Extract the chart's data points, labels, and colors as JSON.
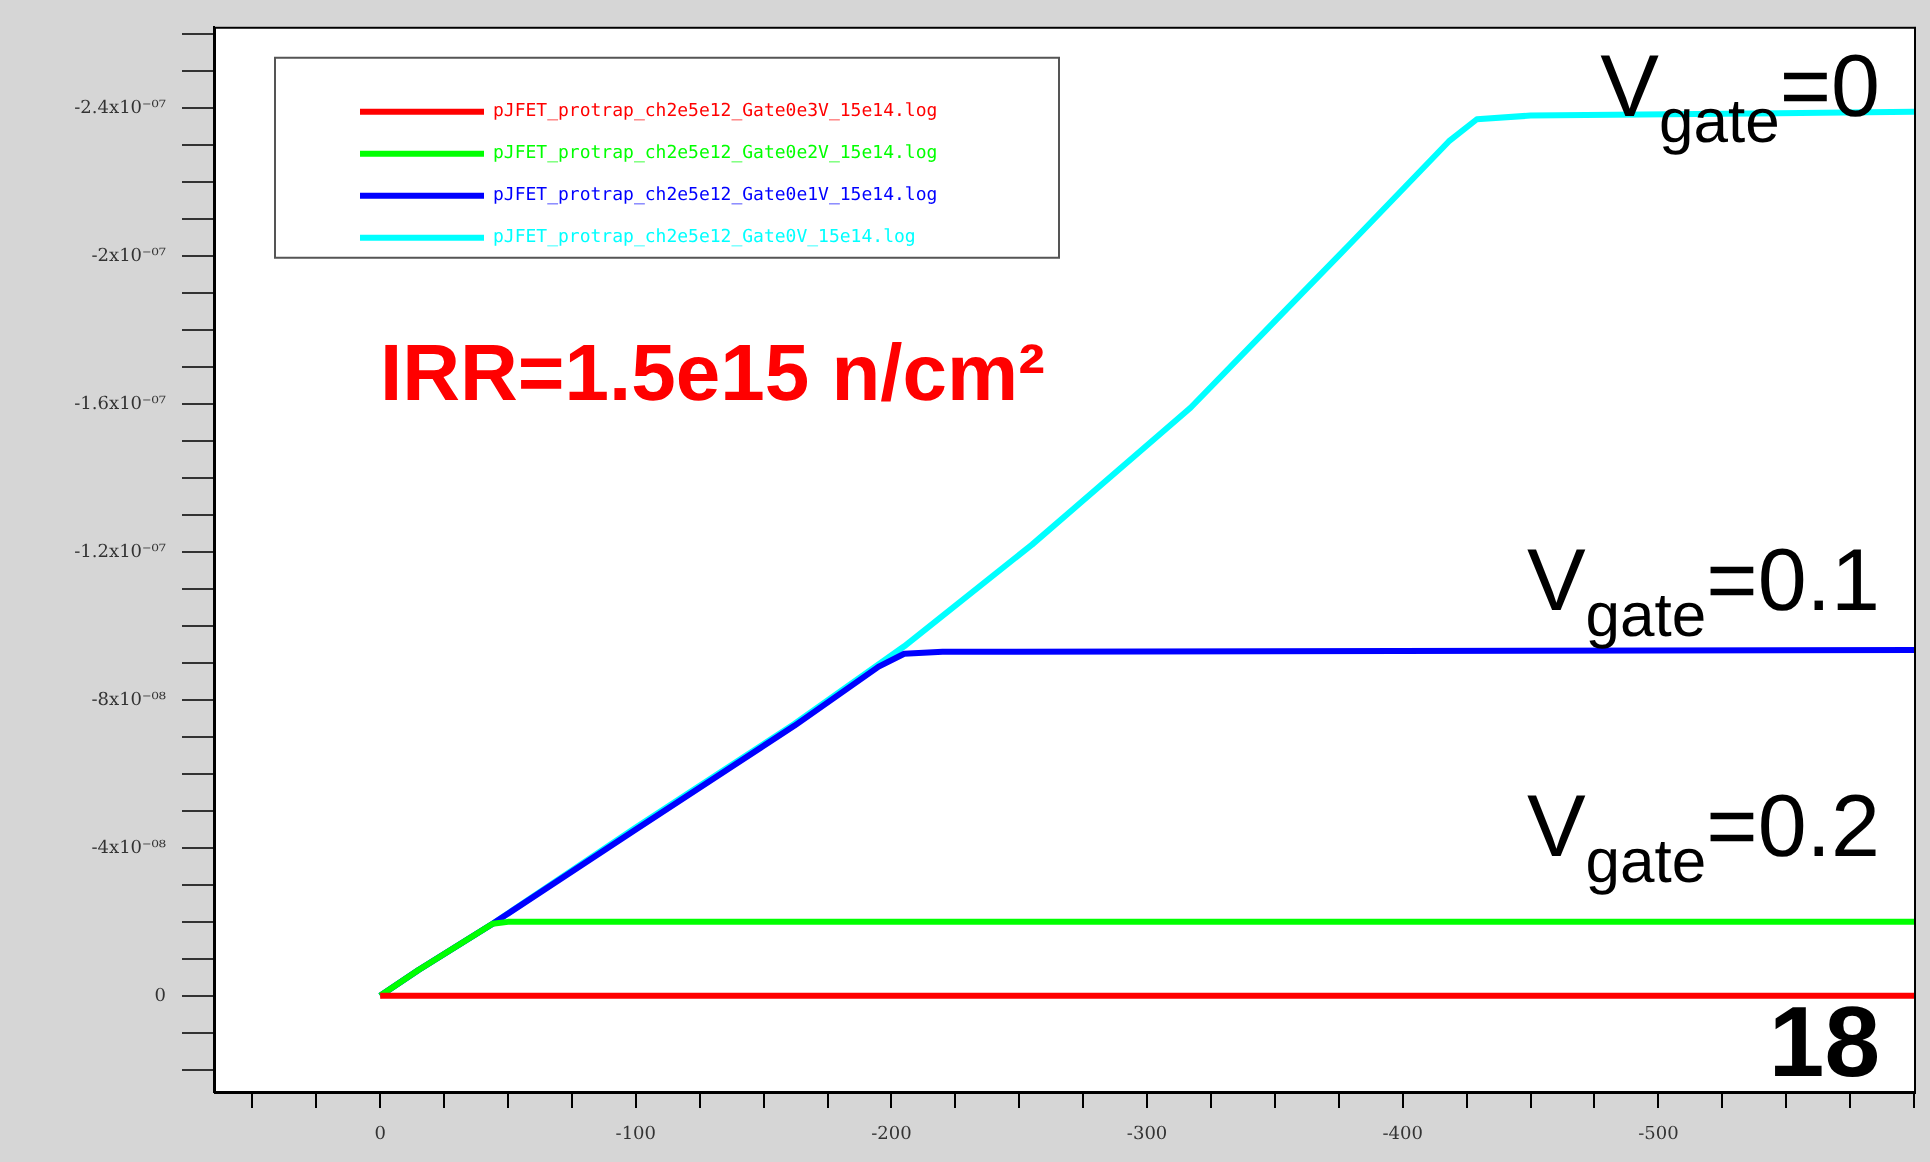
{
  "chart_data": {
    "type": "line",
    "legend": "top left",
    "grid": false,
    "marker": "none",
    "line_style": "solid",
    "xlim": [
      65,
      -600
    ],
    "ylim": [
      2.6e-08,
      -2.62e-07
    ],
    "xticks": [
      {
        "value": 50,
        "label": null
      },
      {
        "value": 25,
        "label": null
      },
      0,
      {
        "value": -25,
        "label": null
      },
      {
        "value": -50,
        "label": null
      },
      {
        "value": -75,
        "label": null
      },
      -100,
      {
        "value": -125,
        "label": null
      },
      {
        "value": -150,
        "label": null
      },
      {
        "value": -175,
        "label": null
      },
      -200,
      {
        "value": -225,
        "label": null
      },
      {
        "value": -250,
        "label": null
      },
      {
        "value": -275,
        "label": null
      },
      -300,
      {
        "value": -325,
        "label": null
      },
      {
        "value": -350,
        "label": null
      },
      {
        "value": -375,
        "label": null
      },
      -400,
      {
        "value": -425,
        "label": null
      },
      {
        "value": -450,
        "label": null
      },
      {
        "value": -475,
        "label": null
      },
      -500,
      {
        "value": -525,
        "label": null
      },
      {
        "value": -550,
        "label": null
      },
      {
        "value": -575,
        "label": null
      },
      {
        "value": -600,
        "label": null
      }
    ],
    "yticks": [
      {
        "value": 2e-08,
        "label": null
      },
      {
        "value": 1e-08,
        "label": null
      },
      0,
      {
        "value": -1e-08,
        "label": null
      },
      {
        "value": -2e-08,
        "label": null
      },
      {
        "value": -3e-08,
        "label": null
      },
      {
        "value": -4e-08,
        "label": "-4x10⁻⁰⁸"
      },
      {
        "value": -5e-08,
        "label": null
      },
      {
        "value": -6e-08,
        "label": null
      },
      {
        "value": -7e-08,
        "label": null
      },
      {
        "value": -8e-08,
        "label": "-8x10⁻⁰⁸"
      },
      {
        "value": -9e-08,
        "label": null
      },
      {
        "value": -1e-07,
        "label": null
      },
      {
        "value": -1.1e-07,
        "label": null
      },
      {
        "value": -1.2e-07,
        "label": "-1.2x10⁻⁰⁷"
      },
      {
        "value": -1.3e-07,
        "label": null
      },
      {
        "value": -1.4e-07,
        "label": null
      },
      {
        "value": -1.5e-07,
        "label": null
      },
      {
        "value": -1.6e-07,
        "label": "-1.6x10⁻⁰⁷"
      },
      {
        "value": -1.7e-07,
        "label": null
      },
      {
        "value": -1.8e-07,
        "label": null
      },
      {
        "value": -1.9e-07,
        "label": null
      },
      {
        "value": -2e-07,
        "label": "-2x10⁻⁰⁷"
      },
      {
        "value": -2.1e-07,
        "label": null
      },
      {
        "value": -2.2e-07,
        "label": null
      },
      {
        "value": -2.3e-07,
        "label": null
      },
      {
        "value": -2.4e-07,
        "label": "-2.4x10⁻⁰⁷"
      },
      {
        "value": -2.5e-07,
        "label": null
      },
      {
        "value": -2.6e-07,
        "label": null
      }
    ],
    "series": [
      {
        "name": "pJFET_protrap_ch2e5e12_Gate0e3V_15e14.log",
        "color": "#ff0000",
        "x": [
          0,
          -5,
          -600
        ],
        "values": [
          0,
          0,
          0
        ]
      },
      {
        "name": "pJFET_protrap_ch2e5e12_Gate0e2V_15e14.log",
        "color": "#00ff00",
        "x": [
          0,
          -15,
          -44,
          -50,
          -600
        ],
        "values": [
          0,
          -7e-09,
          -1.95e-08,
          -2e-08,
          -2e-08
        ]
      },
      {
        "name": "pJFET_protrap_ch2e5e12_Gate0e1V_15e14.log",
        "color": "#0000ff",
        "x": [
          0,
          -15,
          -44,
          -100,
          -162,
          -195,
          -205,
          -220,
          -600
        ],
        "values": [
          0,
          -7e-09,
          -1.95e-08,
          -4.5e-08,
          -7.3e-08,
          -8.9e-08,
          -9.25e-08,
          -9.3e-08,
          -9.35e-08
        ]
      },
      {
        "name": "pJFET_protrap_ch2e5e12_Gate0V_15e14.log",
        "color": "#00ffff",
        "x": [
          0,
          -15,
          -44,
          -100,
          -162,
          -205,
          -255,
          -317,
          -379,
          -418,
          -429,
          -450,
          -600
        ],
        "values": [
          0,
          -7e-09,
          -1.95e-08,
          -4.55e-08,
          -7.35e-08,
          -9.45e-08,
          -1.22e-07,
          -1.59e-07,
          -2.03e-07,
          -2.31e-07,
          -2.37e-07,
          -2.38e-07,
          -2.39e-07
        ]
      }
    ],
    "annotations": [
      "IRR=1.5e15 n/cm²",
      "V$_{gate}$=0",
      "V$_{gate}$=0.1",
      "V$_{gate}$=0.2",
      "18"
    ]
  }
}
